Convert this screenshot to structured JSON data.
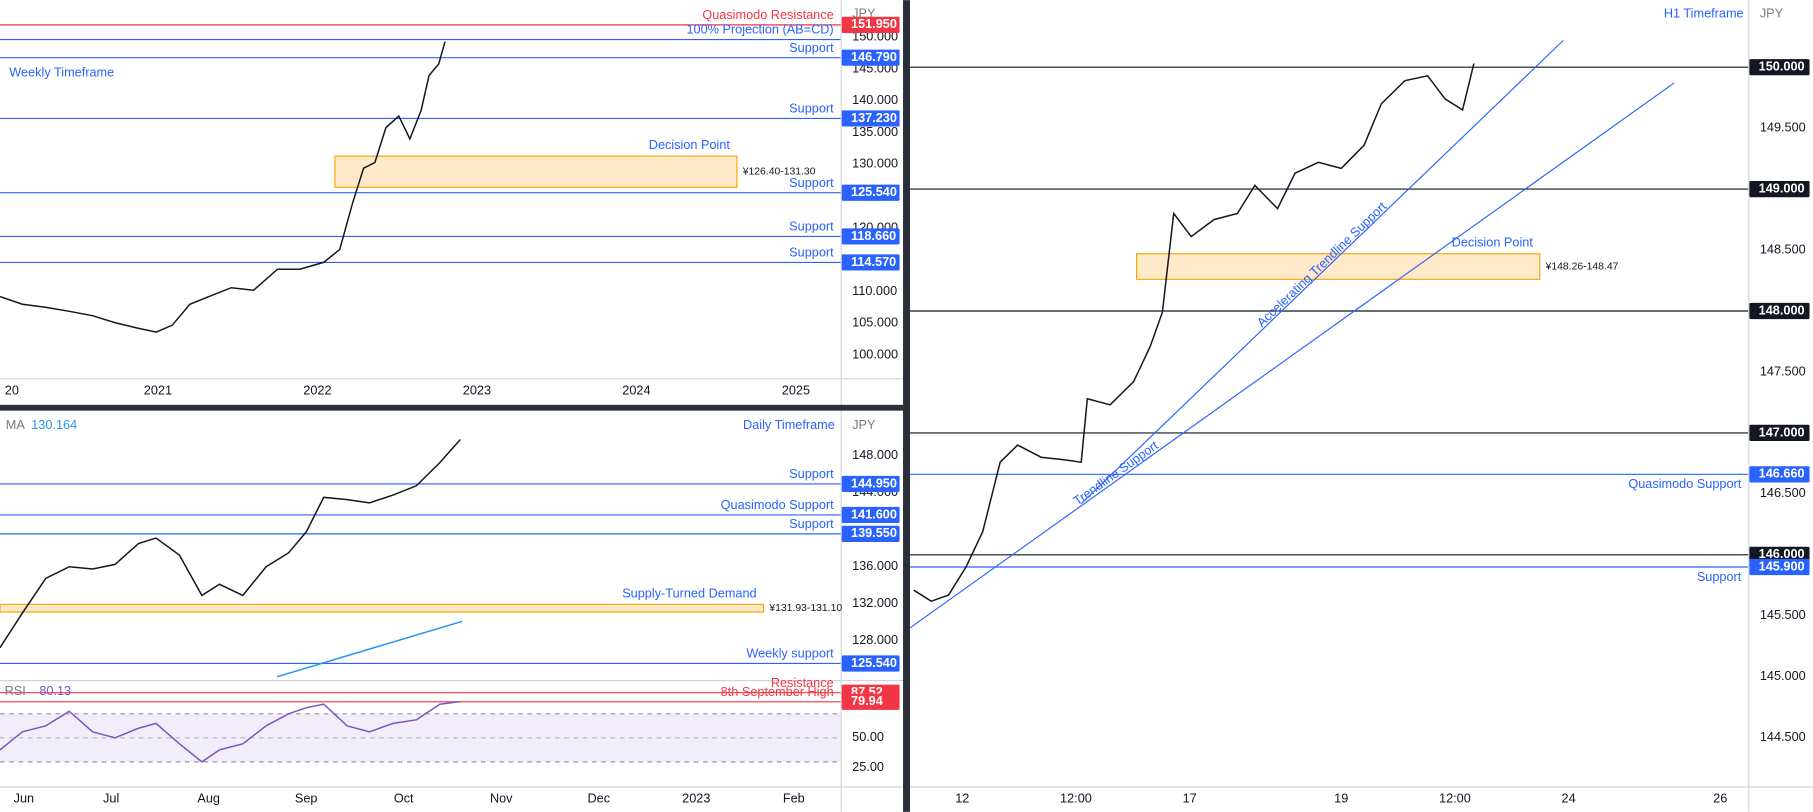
{
  "chart_data": [
    {
      "type": "line",
      "title": "Weekly Timeframe",
      "unit": "JPY",
      "xlim": [
        2020.01,
        2025.28
      ],
      "xticks": [
        {
          "value": 2020.04,
          "label": "20"
        },
        2021,
        2022,
        2023,
        2024,
        2025
      ],
      "ylim": [
        96.35,
        155.84
      ],
      "yticks": [
        {
          "value": 100,
          "label": "100.000"
        },
        {
          "value": 105,
          "label": "105.000"
        },
        {
          "value": 110,
          "label": "110.000"
        },
        {
          "value": 120,
          "label": "120.000"
        },
        {
          "value": 130,
          "label": "130.000"
        },
        {
          "value": 135,
          "label": "135.000"
        },
        {
          "value": 140,
          "label": "140.000"
        },
        {
          "value": 145,
          "label": "145.000"
        },
        {
          "value": 150,
          "label": "150.000"
        }
      ],
      "series": [
        {
          "color": "#131722",
          "x": [
            2020.01,
            2020.15,
            2020.3,
            2020.44,
            2020.59,
            2020.73,
            2020.88,
            2020.99,
            2021.09,
            2021.2,
            2021.31,
            2021.46,
            2021.6,
            2021.75,
            2021.89,
            2022.04,
            2022.14,
            2022.22,
            2022.29,
            2022.36,
            2022.43,
            2022.51,
            2022.58,
            2022.65,
            2022.7,
            2022.76,
            2022.8
          ],
          "values": [
            109.2,
            108.0,
            107.5,
            106.9,
            106.2,
            105.1,
            104.2,
            103.6,
            104.7,
            108.0,
            109.1,
            110.6,
            110.2,
            113.5,
            113.5,
            114.6,
            116.6,
            123.9,
            129.4,
            130.3,
            135.8,
            137.6,
            134.0,
            138.5,
            144.0,
            145.8,
            149.3
          ]
        }
      ],
      "levels": [
        {
          "name": "Quasimodo Resistance",
          "color": "#f23645",
          "price": {
            "value": 151.95,
            "label": "151.950"
          }
        },
        {
          "name": "100% Projection (AB=CD)",
          "color": "#2962ff",
          "price": 149.64
        },
        {
          "name": "Support",
          "color": "#2962ff",
          "price": {
            "value": 146.79,
            "label": "146.790"
          }
        },
        {
          "name": "Support",
          "color": "#2962ff",
          "price": {
            "value": 137.23,
            "label": "137.230"
          }
        },
        {
          "name": "Support",
          "color": "#2962ff",
          "price": {
            "value": 125.54,
            "label": "125.540"
          }
        },
        {
          "name": "Support",
          "color": "#2962ff",
          "price": {
            "value": 118.66,
            "label": "118.660"
          }
        },
        {
          "name": "Support",
          "color": "#2962ff",
          "price": {
            "value": 114.57,
            "label": "114.570"
          }
        }
      ],
      "zones": [
        {
          "name": "Decision Point",
          "range_label": "¥126.40-131.30",
          "low": 126.4,
          "high": 131.3,
          "x": [
            2022.11,
            2024.63
          ]
        }
      ]
    },
    {
      "type": "line",
      "title": "Daily Timeframe",
      "unit": "JPY",
      "xlim": [
        5.86,
        14.48
      ],
      "xticks": [
        {
          "value": 6,
          "label": "Jun"
        },
        {
          "value": 7,
          "label": "Jul"
        },
        {
          "value": 8,
          "label": "Aug"
        },
        {
          "value": 9,
          "label": "Sep"
        },
        {
          "value": 10,
          "label": "Oct"
        },
        {
          "value": 11,
          "label": "Nov"
        },
        {
          "value": 12,
          "label": "Dec"
        },
        {
          "value": 13,
          "label": "2023"
        },
        {
          "value": 14,
          "label": "Feb"
        }
      ],
      "ylim": [
        124.0,
        152.75
      ],
      "yticks": [
        {
          "value": 128,
          "label": "128.000"
        },
        {
          "value": 132,
          "label": "132.000"
        },
        {
          "value": 136,
          "label": "136.000"
        },
        {
          "value": 144,
          "label": "144.000"
        },
        {
          "value": 148,
          "label": "148.000"
        }
      ],
      "series": [
        {
          "color": "#131722",
          "x": [
            5.86,
            6.09,
            6.33,
            6.57,
            6.81,
            7.04,
            7.28,
            7.46,
            7.7,
            7.93,
            8.11,
            8.35,
            8.59,
            8.82,
            9.0,
            9.18,
            9.42,
            9.65,
            9.89,
            10.13,
            10.37,
            10.58
          ],
          "values": [
            127.25,
            131.0,
            134.75,
            136.0,
            135.75,
            136.25,
            138.5,
            139.1,
            137.25,
            132.9,
            134.1,
            132.9,
            136.0,
            137.5,
            139.75,
            143.5,
            143.25,
            142.9,
            143.75,
            144.75,
            147.25,
            149.75
          ]
        },
        {
          "name": "MA",
          "color": "#2196f3",
          "x": [
            8.7,
            10.6
          ],
          "values": [
            124.1,
            130.1
          ],
          "last": {
            "value": 130.164,
            "label": "130.164"
          }
        }
      ],
      "levels": [
        {
          "name": "Support",
          "color": "#2962ff",
          "price": {
            "value": 144.95,
            "label": "144.950"
          }
        },
        {
          "name": "Quasimodo Support",
          "color": "#2962ff",
          "price": {
            "value": 141.6,
            "label": "141.600"
          }
        },
        {
          "name": "Support",
          "color": "#2962ff",
          "price": {
            "value": 139.55,
            "label": "139.550"
          }
        },
        {
          "name": "Weekly support",
          "color": "#2962ff",
          "price": {
            "value": 125.54,
            "label": "125.540"
          }
        }
      ],
      "zones": [
        {
          "name": "Supply-Turned Demand",
          "range_label": "¥131.93-131.10",
          "low": 131.1,
          "high": 131.93,
          "x": [
            5.86,
            13.69
          ]
        }
      ]
    },
    {
      "type": "line",
      "xlim": [
        5.86,
        14.48
      ],
      "ylim": [
        9.6,
        96.15
      ],
      "yticks": [
        {
          "value": 25,
          "label": "25.00"
        },
        {
          "value": 50,
          "label": "50.00"
        }
      ],
      "band": [
        30,
        70
      ],
      "midline": 50,
      "series": [
        {
          "name": "RSI",
          "color": "#7e57c2",
          "x": [
            5.86,
            6.09,
            6.33,
            6.57,
            6.81,
            7.04,
            7.28,
            7.46,
            7.7,
            7.93,
            8.11,
            8.35,
            8.59,
            8.82,
            9.0,
            9.18,
            9.42,
            9.65,
            9.89,
            10.13,
            10.37,
            10.58
          ],
          "values": [
            40,
            55,
            60,
            72,
            55,
            50,
            58,
            62,
            45,
            30,
            40,
            45,
            60,
            70,
            75,
            78,
            60,
            55,
            62,
            65,
            78,
            80.13
          ],
          "last": 80.13
        }
      ],
      "levels": [
        {
          "name": "Resistance",
          "color": "#f23645",
          "price": 87.52
        },
        {
          "name": "8th September High",
          "color": "#f23645",
          "price": 79.94
        }
      ]
    },
    {
      "type": "line",
      "title": "H1 Timeframe",
      "unit": "JPY",
      "xlim": [
        -0.69,
        10.37
      ],
      "xticks": [
        {
          "value": 0,
          "label": "12"
        },
        {
          "value": 1.5,
          "label": "12:00"
        },
        {
          "value": 3,
          "label": "17"
        },
        {
          "value": 5,
          "label": "19"
        },
        {
          "value": 6.5,
          "label": "12:00"
        },
        {
          "value": 8,
          "label": "24"
        },
        {
          "value": 10,
          "label": "26"
        }
      ],
      "ylim": [
        144.1,
        150.55
      ],
      "yticks": [
        {
          "value": 144.5,
          "label": "144.500"
        },
        {
          "value": 145,
          "label": "145.000"
        },
        {
          "value": 145.5,
          "label": "145.500"
        },
        {
          "value": 146.5,
          "label": "146.500"
        },
        {
          "value": 147.5,
          "label": "147.500"
        },
        {
          "value": 148.5,
          "label": "148.500"
        },
        {
          "value": 149.5,
          "label": "149.500"
        }
      ],
      "series": [
        {
          "color": "#131722",
          "x": [
            -0.64,
            -0.41,
            -0.18,
            0.05,
            0.27,
            0.5,
            0.73,
            1.04,
            1.34,
            1.57,
            1.65,
            1.95,
            2.26,
            2.48,
            2.64,
            2.79,
            3.02,
            3.32,
            3.63,
            3.86,
            4.16,
            4.39,
            4.7,
            5.0,
            5.3,
            5.53,
            5.84,
            6.14,
            6.37,
            6.6,
            6.75
          ],
          "values": [
            145.71,
            145.62,
            145.67,
            145.9,
            146.19,
            146.76,
            146.9,
            146.8,
            146.78,
            146.76,
            147.28,
            147.23,
            147.42,
            147.71,
            147.99,
            148.8,
            148.61,
            148.75,
            148.8,
            149.03,
            148.84,
            149.13,
            149.22,
            149.17,
            149.36,
            149.7,
            149.89,
            149.93,
            149.74,
            149.65,
            150.03
          ]
        }
      ],
      "levels": [
        {
          "color": "#131722",
          "price": {
            "value": 150,
            "label": "150.000"
          }
        },
        {
          "color": "#131722",
          "price": {
            "value": 149,
            "label": "149.000"
          }
        },
        {
          "color": "#131722",
          "price": {
            "value": 148,
            "label": "148.000"
          }
        },
        {
          "color": "#131722",
          "price": {
            "value": 147,
            "label": "147.000"
          }
        },
        {
          "name": "Quasimodo Support",
          "color": "#2962ff",
          "price": {
            "value": 146.66,
            "label": "146.660"
          }
        },
        {
          "color": "#131722",
          "price": {
            "value": 146,
            "label": "146.000"
          }
        },
        {
          "name": "Support",
          "color": "#2962ff",
          "price": {
            "value": 145.9,
            "label": "145.900"
          }
        }
      ],
      "zones": [
        {
          "name": "Decision Point",
          "range_label": "¥148.26-148.47",
          "low": 148.26,
          "high": 148.47,
          "x": [
            2.3,
            7.62
          ]
        }
      ],
      "trendlines": [
        {
          "name": "Trendline Support",
          "color": "#2962ff",
          "x": [
            -0.69,
            9.39
          ],
          "values": [
            145.4,
            149.87
          ]
        },
        {
          "name": "Accelerating Trendline Support",
          "color": "#2962ff",
          "x": [
            1.57,
            7.93
          ],
          "values": [
            146.42,
            150.22
          ]
        }
      ]
    }
  ]
}
